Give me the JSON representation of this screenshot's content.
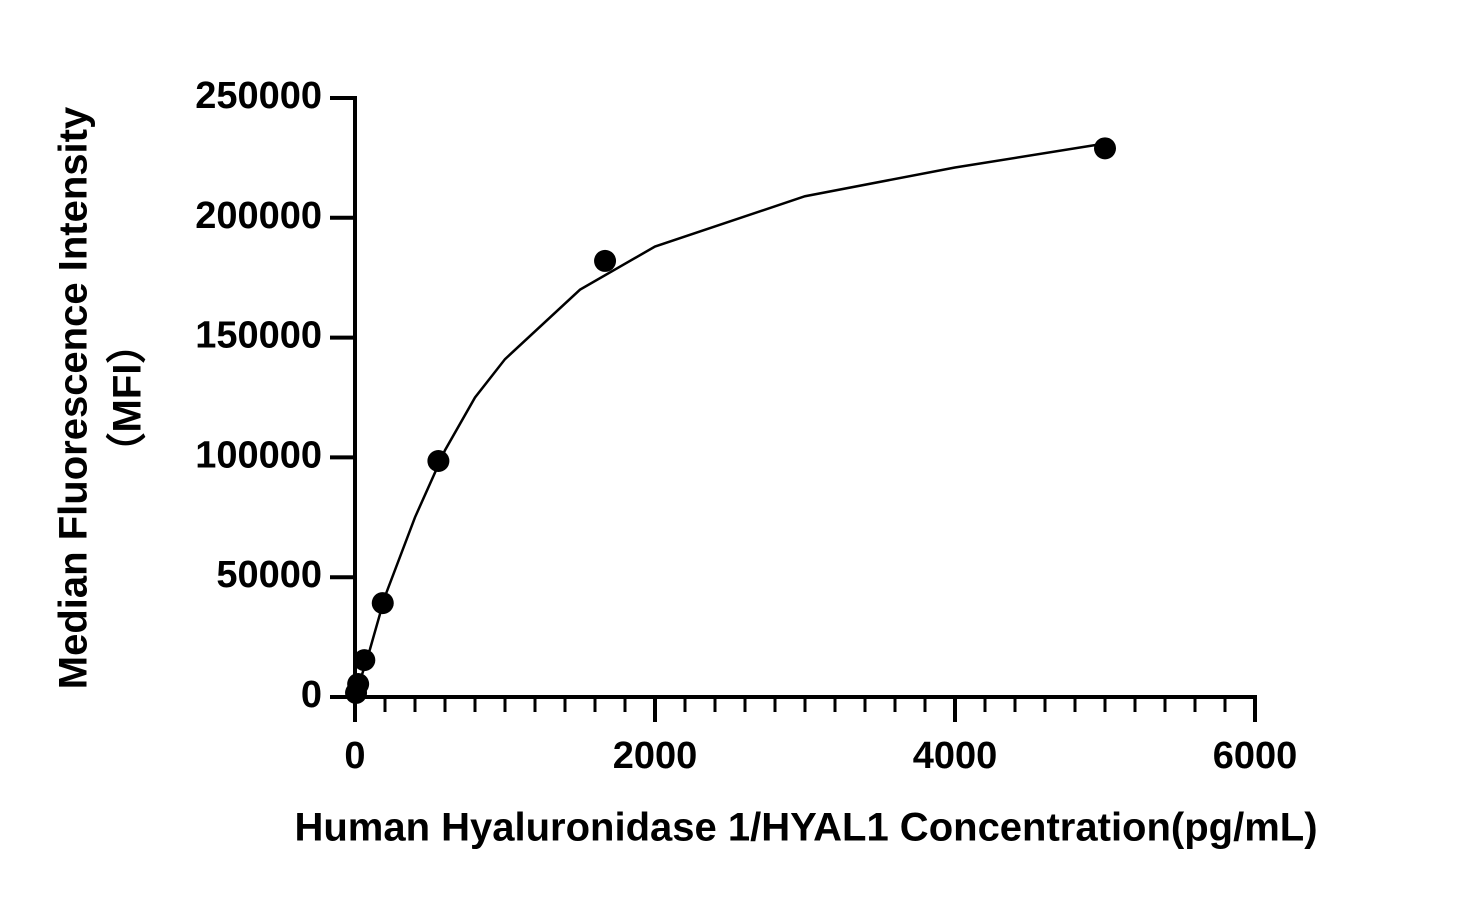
{
  "chart_data": {
    "type": "scatter",
    "xlabel": "Human Hyaluronidase 1/HYAL1 Concentration(pg/mL)",
    "ylabel": [
      "Median Fluorescence Intensity",
      "（MFI）"
    ],
    "x": [
      5000,
      1667,
      556,
      185,
      62,
      21,
      7
    ],
    "values": [
      229000,
      182000,
      98500,
      39200,
      15400,
      5400,
      1700
    ],
    "color": "#000000",
    "fit": {
      "x": [
        0,
        100,
        200,
        400,
        600,
        800,
        1000,
        1500,
        2000,
        3000,
        4000,
        5000
      ],
      "y": [
        0,
        20000,
        42000,
        75000,
        103000,
        125000,
        141000,
        170000,
        188000,
        209000,
        221000,
        231000
      ]
    },
    "xlim": [
      0,
      6000
    ],
    "xticks": [
      0,
      2000,
      4000,
      6000
    ],
    "xminorticks": [
      200,
      400,
      600,
      800,
      1000,
      1200,
      1400,
      1600,
      1800,
      2200,
      2400,
      2600,
      2800,
      3000,
      3200,
      3400,
      3600,
      3800,
      4200,
      4400,
      4600,
      4800,
      5000,
      5200,
      5400,
      5600,
      5800
    ],
    "ylim": [
      0,
      250000
    ],
    "yticks": [
      0,
      50000,
      100000,
      150000,
      200000,
      250000
    ]
  }
}
